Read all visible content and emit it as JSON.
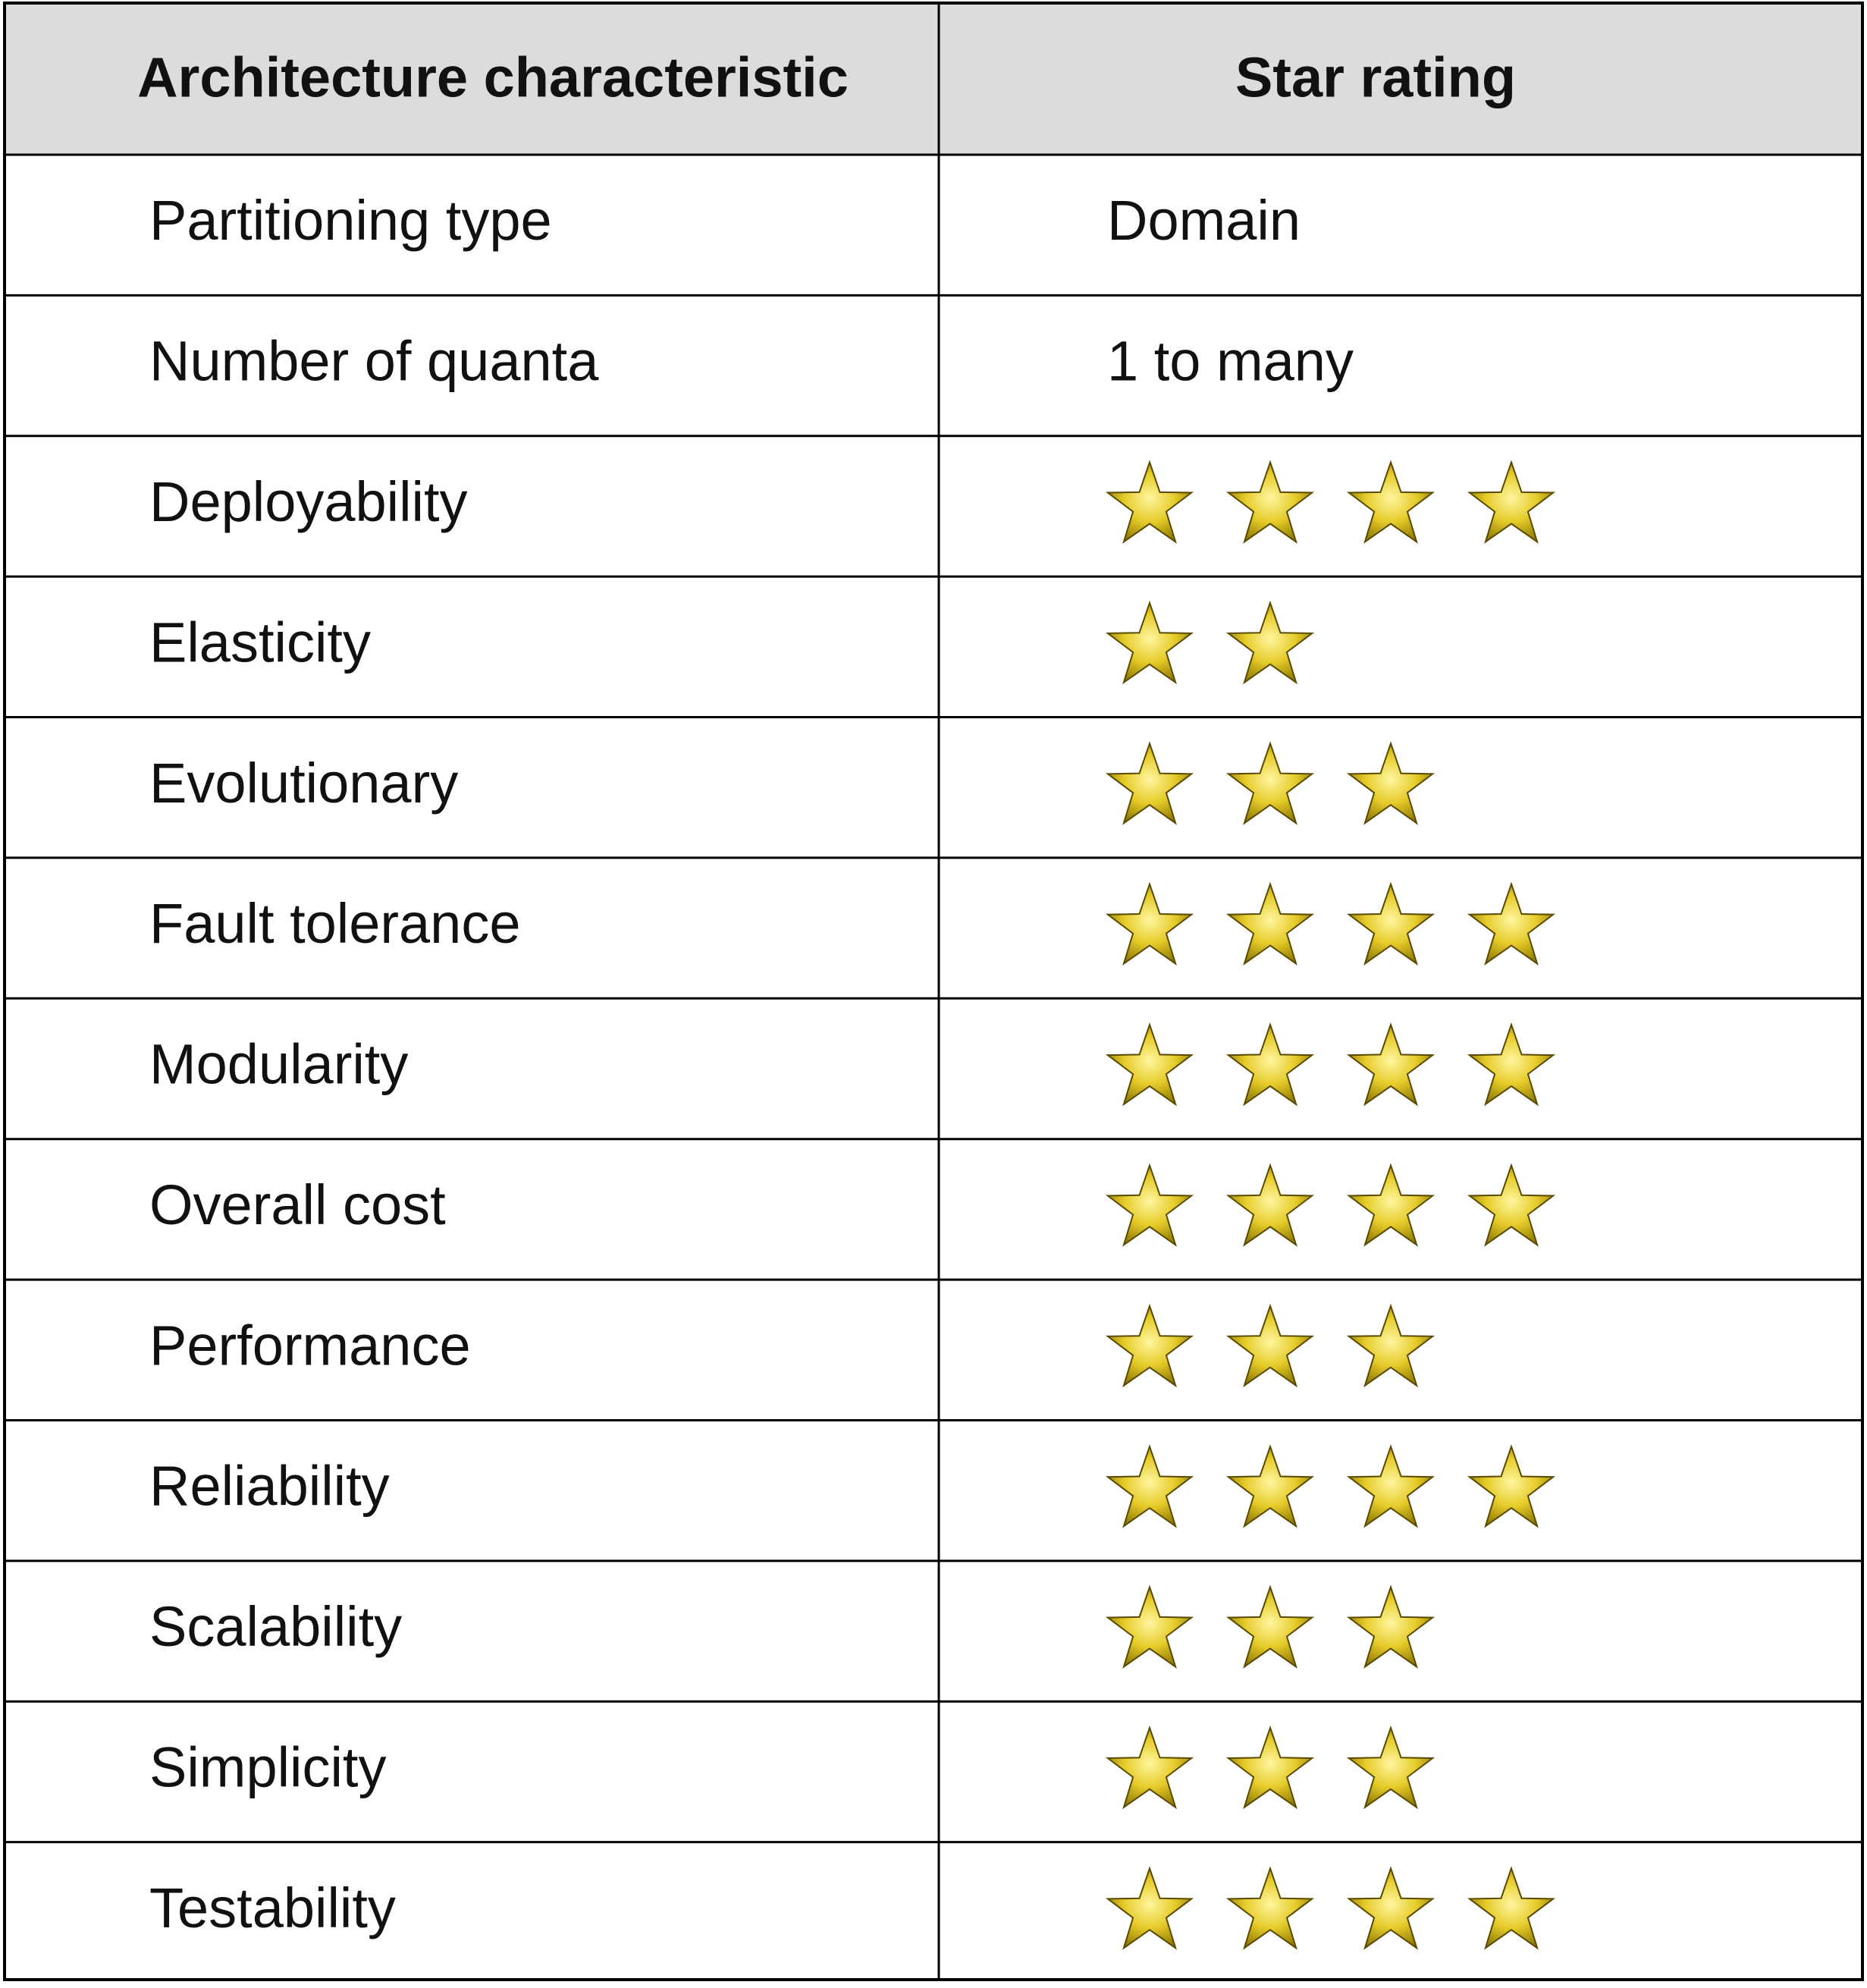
{
  "table": {
    "header": [
      "Architecture characteristic",
      "Star rating"
    ],
    "rows": [
      {
        "characteristic": "Partitioning type",
        "value": "Domain"
      },
      {
        "characteristic": "Number of quanta",
        "value": "1 to many"
      },
      {
        "characteristic": "Deployability",
        "rating": 4
      },
      {
        "characteristic": "Elasticity",
        "rating": 2
      },
      {
        "characteristic": "Evolutionary",
        "rating": 3
      },
      {
        "characteristic": "Fault tolerance",
        "rating": 4
      },
      {
        "characteristic": "Modularity",
        "rating": 4
      },
      {
        "characteristic": "Overall cost",
        "rating": 4
      },
      {
        "characteristic": "Performance",
        "rating": 3
      },
      {
        "characteristic": "Reliability",
        "rating": 4
      },
      {
        "characteristic": "Scalability",
        "rating": 3
      },
      {
        "characteristic": "Simplicity",
        "rating": 3
      },
      {
        "characteristic": "Testability",
        "rating": 4
      }
    ]
  }
}
